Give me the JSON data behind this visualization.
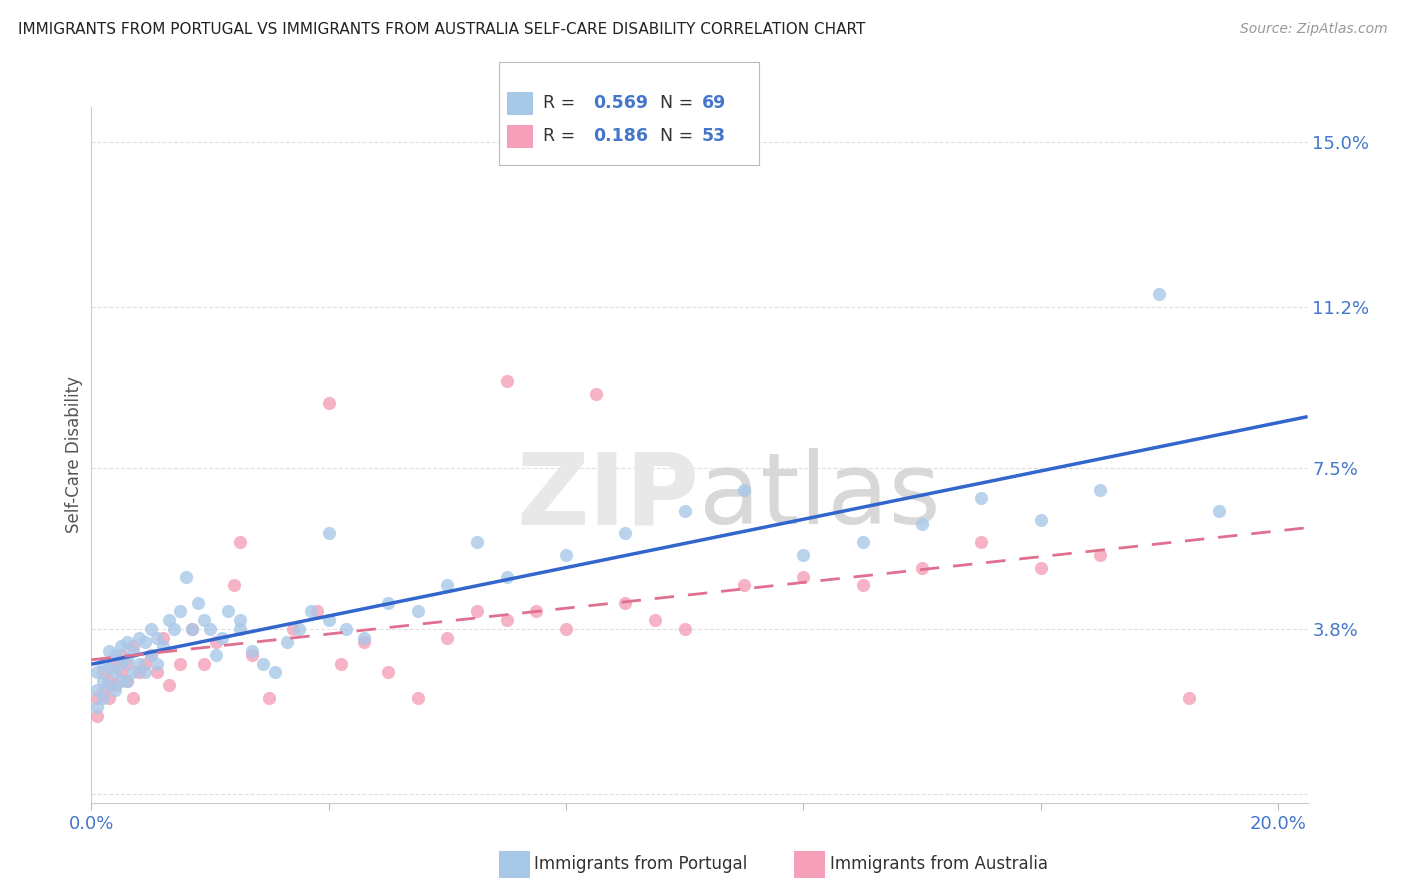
{
  "title": "IMMIGRANTS FROM PORTUGAL VS IMMIGRANTS FROM AUSTRALIA SELF-CARE DISABILITY CORRELATION CHART",
  "source": "Source: ZipAtlas.com",
  "ylabel": "Self-Care Disability",
  "xlim": [
    0.0,
    0.205
  ],
  "ylim": [
    -0.002,
    0.158
  ],
  "xtick_positions": [
    0.0,
    0.04,
    0.08,
    0.12,
    0.16,
    0.2
  ],
  "xticklabels": [
    "0.0%",
    "",
    "",
    "",
    "",
    "20.0%"
  ],
  "ytick_positions": [
    0.0,
    0.038,
    0.075,
    0.112,
    0.15
  ],
  "ytick_labels": [
    "",
    "3.8%",
    "7.5%",
    "11.2%",
    "15.0%"
  ],
  "portugal_color": "#a8c8e8",
  "australia_color": "#f5a0b8",
  "portugal_line_color": "#3366cc",
  "australia_line_color": "#e07090",
  "R_portugal": 0.569,
  "N_portugal": 69,
  "R_australia": 0.186,
  "N_australia": 53,
  "portugal_x": [
    0.001,
    0.001,
    0.001,
    0.002,
    0.002,
    0.002,
    0.003,
    0.003,
    0.003,
    0.004,
    0.004,
    0.004,
    0.005,
    0.005,
    0.005,
    0.006,
    0.006,
    0.006,
    0.007,
    0.007,
    0.008,
    0.008,
    0.009,
    0.009,
    0.01,
    0.01,
    0.011,
    0.011,
    0.012,
    0.013,
    0.014,
    0.015,
    0.016,
    0.017,
    0.018,
    0.019,
    0.02,
    0.021,
    0.022,
    0.023,
    0.025,
    0.027,
    0.029,
    0.031,
    0.033,
    0.035,
    0.037,
    0.04,
    0.043,
    0.046,
    0.05,
    0.055,
    0.06,
    0.065,
    0.07,
    0.08,
    0.09,
    0.1,
    0.11,
    0.12,
    0.13,
    0.14,
    0.15,
    0.16,
    0.17,
    0.18,
    0.19,
    0.04,
    0.025
  ],
  "portugal_y": [
    0.02,
    0.024,
    0.028,
    0.022,
    0.026,
    0.03,
    0.025,
    0.029,
    0.033,
    0.024,
    0.028,
    0.032,
    0.026,
    0.03,
    0.034,
    0.026,
    0.031,
    0.035,
    0.028,
    0.033,
    0.03,
    0.036,
    0.028,
    0.035,
    0.032,
    0.038,
    0.03,
    0.036,
    0.034,
    0.04,
    0.038,
    0.042,
    0.05,
    0.038,
    0.044,
    0.04,
    0.038,
    0.032,
    0.036,
    0.042,
    0.038,
    0.033,
    0.03,
    0.028,
    0.035,
    0.038,
    0.042,
    0.04,
    0.038,
    0.036,
    0.044,
    0.042,
    0.048,
    0.058,
    0.05,
    0.055,
    0.06,
    0.065,
    0.07,
    0.055,
    0.058,
    0.062,
    0.068,
    0.063,
    0.07,
    0.115,
    0.065,
    0.06,
    0.04
  ],
  "australia_x": [
    0.001,
    0.001,
    0.002,
    0.002,
    0.003,
    0.003,
    0.004,
    0.004,
    0.005,
    0.005,
    0.006,
    0.006,
    0.007,
    0.007,
    0.008,
    0.009,
    0.01,
    0.011,
    0.012,
    0.013,
    0.015,
    0.017,
    0.019,
    0.021,
    0.024,
    0.027,
    0.03,
    0.034,
    0.038,
    0.042,
    0.046,
    0.05,
    0.055,
    0.06,
    0.065,
    0.07,
    0.075,
    0.08,
    0.085,
    0.09,
    0.095,
    0.1,
    0.11,
    0.12,
    0.13,
    0.14,
    0.15,
    0.16,
    0.17,
    0.185,
    0.04,
    0.025,
    0.07
  ],
  "australia_y": [
    0.018,
    0.022,
    0.024,
    0.028,
    0.022,
    0.026,
    0.025,
    0.03,
    0.028,
    0.032,
    0.026,
    0.03,
    0.022,
    0.034,
    0.028,
    0.03,
    0.032,
    0.028,
    0.036,
    0.025,
    0.03,
    0.038,
    0.03,
    0.035,
    0.048,
    0.032,
    0.022,
    0.038,
    0.042,
    0.03,
    0.035,
    0.028,
    0.022,
    0.036,
    0.042,
    0.04,
    0.042,
    0.038,
    0.092,
    0.044,
    0.04,
    0.038,
    0.048,
    0.05,
    0.048,
    0.052,
    0.058,
    0.052,
    0.055,
    0.022,
    0.09,
    0.058,
    0.095
  ],
  "watermark_zip": "ZIP",
  "watermark_atlas": "atlas",
  "bg_color": "#ffffff",
  "grid_color": "#e0e0e0",
  "title_color": "#222222",
  "source_color": "#999999",
  "tick_color": "#4477cc",
  "axis_label_color": "#555555",
  "legend_text_color": "#333333",
  "legend_value_color": "#4477cc"
}
